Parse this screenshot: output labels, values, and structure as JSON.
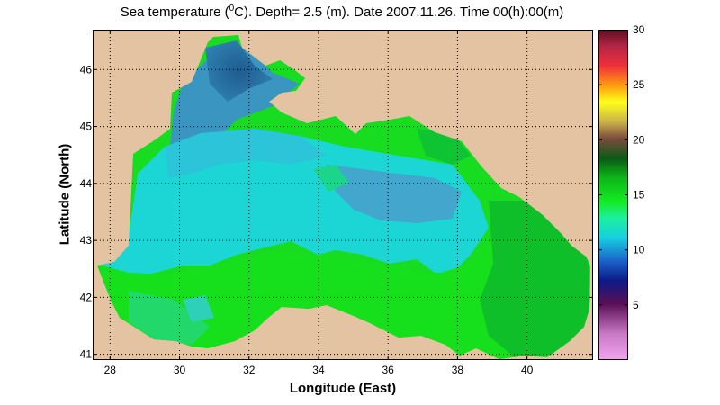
{
  "title": {
    "prefix": "Sea temperature (",
    "sup": "0",
    "suffix": "C). Depth=  2.5 (m). Date 2007.11.26. Time 00(h):00(m)"
  },
  "xlabel": "Longitude (East)",
  "ylabel": "Latitude (North)",
  "map": {
    "xlim": [
      27.5,
      41.9
    ],
    "ylim": [
      40.9,
      46.7
    ],
    "xticks": [
      28,
      30,
      32,
      34,
      36,
      38,
      40
    ],
    "yticks": [
      41,
      42,
      43,
      44,
      45,
      46
    ],
    "grid": true,
    "land_color": "#e4c3a3",
    "sea_region": "Black Sea"
  },
  "colorbar": {
    "min": 0,
    "max": 30,
    "ticks": [
      5,
      10,
      15,
      20,
      25,
      30
    ],
    "colormap": "custom: pink - purple - dark blue - cyan - green - dark green - brown - yellow - orange - red - dark red"
  },
  "colors": {
    "cold_nw": "#2a6f9e",
    "blue": "#3a94bf",
    "cyan": "#19dada",
    "green": "#14e01d",
    "deep_green": "#0db22c"
  }
}
